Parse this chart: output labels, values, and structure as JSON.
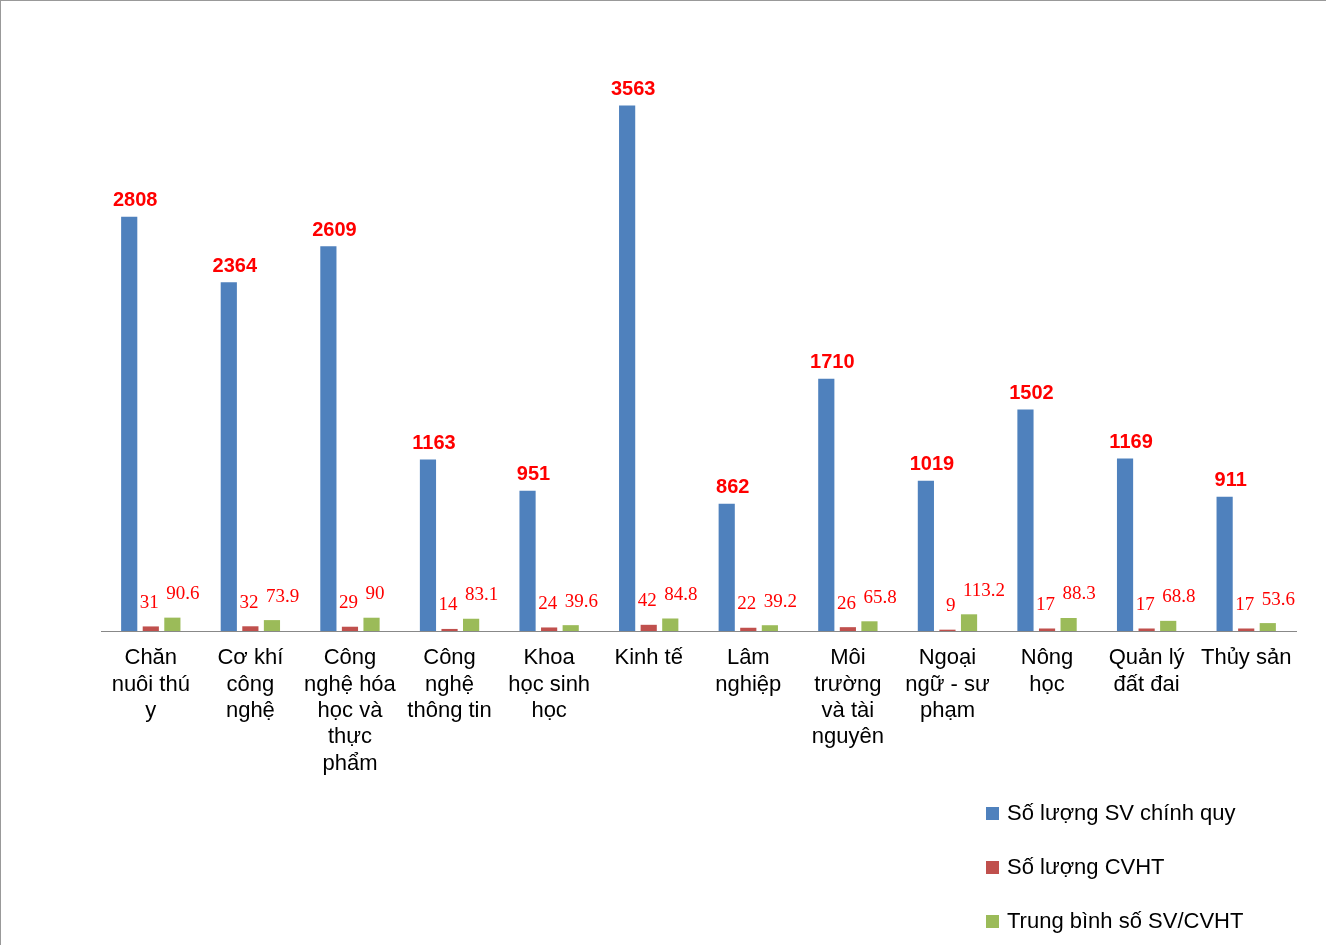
{
  "chart_data": {
    "type": "bar",
    "categories": [
      "Chăn nuôi thú y",
      "Cơ khí công nghệ",
      "Công nghệ hóa học và thực phẩm",
      "Công nghệ thông tin",
      "Khoa học sinh học",
      "Kinh tế",
      "Lâm nghiệp",
      "Môi trường và tài nguyên",
      "Ngoại ngữ - sư phạm",
      "Nông học",
      "Quản lý đất đai",
      "Thủy sản"
    ],
    "series": [
      {
        "name": "Số lượng SV chính quy",
        "color": "#4f81bd",
        "values": [
          2808,
          2364,
          2609,
          1163,
          951,
          3563,
          862,
          1710,
          1019,
          1502,
          1169,
          911
        ]
      },
      {
        "name": "Số lượng CVHT",
        "color": "#c0504d",
        "values": [
          31,
          32,
          29,
          14,
          24,
          42,
          22,
          26,
          9,
          17,
          17,
          17
        ]
      },
      {
        "name": "Trung bình số SV/CVHT",
        "color": "#9bbb59",
        "values": [
          90.6,
          73.9,
          90,
          83.1,
          39.6,
          84.8,
          39.2,
          65.8,
          113.2,
          88.3,
          68.8,
          53.6
        ]
      }
    ],
    "data_labels": true,
    "legend": "bottom right",
    "grid": false,
    "tick_labels": "x"
  }
}
